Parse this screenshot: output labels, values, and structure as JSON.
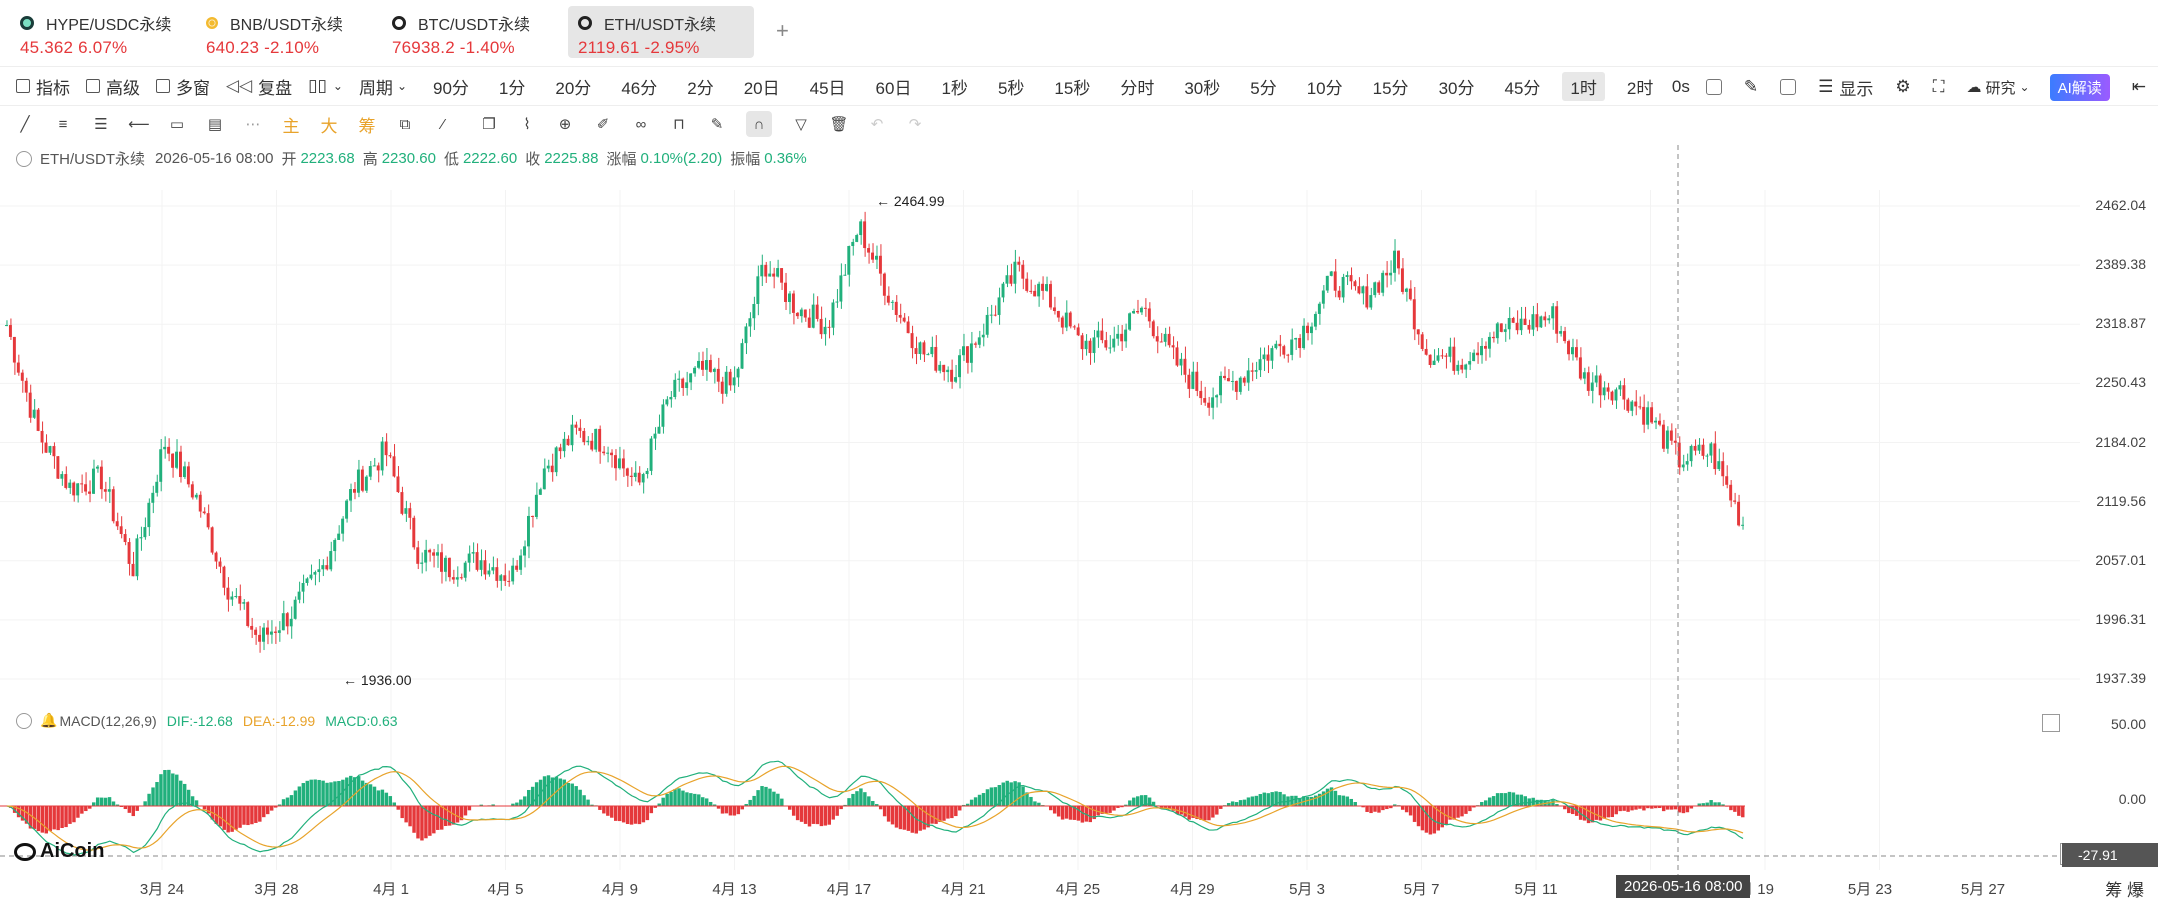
{
  "tabs": [
    {
      "symbol": "HYPE/USDC永续",
      "price": "45.362",
      "change": "6.07%",
      "icon": "hype-coin-icon"
    },
    {
      "symbol": "BNB/USDT永续",
      "price": "640.23",
      "change": "-2.10%",
      "icon": "bnb-coin-icon"
    },
    {
      "symbol": "BTC/USDT永续",
      "price": "76938.2",
      "change": "-1.40%",
      "icon": "btc-coin-icon"
    },
    {
      "symbol": "ETH/USDT永续",
      "price": "2119.61",
      "change": "-2.95%",
      "icon": "eth-coin-icon"
    }
  ],
  "add_tab_label": "+",
  "toolbar": {
    "indicators": "指标",
    "advanced": "高级",
    "multi_window": "多窗",
    "replay": "复盘",
    "period_label": "周期",
    "periods": [
      "90分",
      "1分",
      "20分",
      "46分",
      "2分",
      "20日",
      "45日",
      "60日",
      "1秒",
      "5秒",
      "15秒",
      "分时",
      "30秒",
      "5分",
      "10分",
      "15分",
      "30分",
      "45分",
      "1时",
      "2时"
    ],
    "active_period": "1时",
    "countdown": "0s",
    "display": "显示",
    "research": "研究",
    "ai": "AI解读"
  },
  "ohlc": {
    "symbol": "ETH/USDT永续",
    "datetime": "2026-05-16 08:00",
    "open_label": "开",
    "open": "2223.68",
    "high_label": "高",
    "high": "2230.60",
    "low_label": "低",
    "low": "2222.60",
    "close_label": "收",
    "close": "2225.88",
    "change_label": "涨幅",
    "change": "0.10%(2.20)",
    "amp_label": "振幅",
    "amp": "0.36%"
  },
  "macd": {
    "name": "MACD(12,26,9)",
    "dif": "DIF:-12.68",
    "dea": "DEA:-12.99",
    "macd": "MACD:0.63",
    "current_value": "-27.91"
  },
  "annotations": {
    "high": "← 2464.99",
    "low": "← 1936.00"
  },
  "crosshair_date": "2026-05-16 08:00",
  "brand": "AiCoin",
  "corner_buttons": "筹  爆",
  "chart_data": {
    "type": "candlestick",
    "y_axis_ticks": [
      "2462.04",
      "2389.38",
      "2318.87",
      "2250.43",
      "2184.02",
      "2119.56",
      "2057.01",
      "1996.31",
      "1937.39"
    ],
    "macd_axis_ticks": [
      "50.00",
      "0.00"
    ],
    "x_axis_ticks": [
      "3月 24",
      "3月 28",
      "4月 1",
      "4月 5",
      "4月 9",
      "4月 13",
      "4月 17",
      "4月 21",
      "4月 25",
      "4月 29",
      "5月 3",
      "5月 7",
      "5月 11",
      "月 19",
      "5月 23",
      "5月 27"
    ],
    "ylim": [
      1937.39,
      2462.04
    ],
    "series": [
      {
        "name": "close",
        "values": [
          2330,
          2210,
          2150,
          2160,
          2060,
          2200,
          2140,
          2040,
          1980,
          2010,
          2060,
          2150,
          2190,
          2080,
          2060,
          2070,
          2050,
          2170,
          2210,
          2200,
          2150,
          2250,
          2280,
          2260,
          2400,
          2350,
          2330,
          2440,
          2360,
          2300,
          2280,
          2330,
          2390,
          2360,
          2310,
          2310,
          2350,
          2290,
          2250,
          2270,
          2300,
          2320,
          2380,
          2360,
          2400,
          2300,
          2290,
          2320,
          2330,
          2340,
          2270,
          2260,
          2230,
          2180,
          2190,
          2110
        ]
      }
    ],
    "high": 2464.99,
    "low": 1936.0
  },
  "colors": {
    "up": "#21b07c",
    "down": "#e5383b",
    "dif_line": "#21b07c",
    "dea_line": "#e8a32b"
  }
}
